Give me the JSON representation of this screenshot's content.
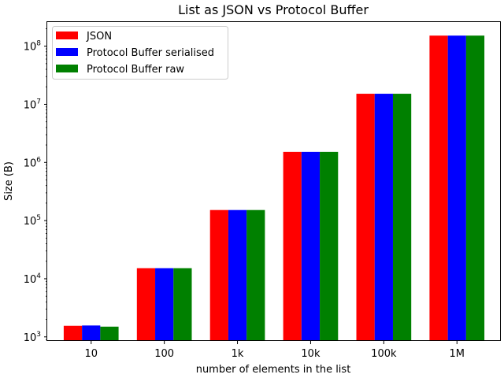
{
  "chart_data": {
    "type": "bar",
    "title": "List as JSON vs Protocol Buffer",
    "xlabel": "number of elements in the list",
    "ylabel": "Size (B)",
    "yscale": "log",
    "ylim": [
      850,
      260000000
    ],
    "categories": [
      "10",
      "100",
      "1k",
      "10k",
      "100k",
      "1M"
    ],
    "series": [
      {
        "name": "JSON",
        "color": "#ff0000",
        "values": [
          1550,
          15200,
          152000,
          1520000,
          15200000,
          152000000
        ]
      },
      {
        "name": "Protocol Buffer serialised",
        "color": "#0000ff",
        "values": [
          1570,
          15200,
          152000,
          1520000,
          15200000,
          152000000
        ]
      },
      {
        "name": "Protocol Buffer raw",
        "color": "#008000",
        "values": [
          1500,
          15200,
          152000,
          1520000,
          15200000,
          152000000
        ]
      }
    ],
    "y_ticks": [
      {
        "value": 1000,
        "base": "10",
        "exp": "3"
      },
      {
        "value": 10000,
        "base": "10",
        "exp": "4"
      },
      {
        "value": 100000,
        "base": "10",
        "exp": "5"
      },
      {
        "value": 1000000,
        "base": "10",
        "exp": "6"
      },
      {
        "value": 10000000,
        "base": "10",
        "exp": "7"
      },
      {
        "value": 100000000,
        "base": "10",
        "exp": "8"
      }
    ],
    "legend_position": "top-left",
    "grid": false
  }
}
